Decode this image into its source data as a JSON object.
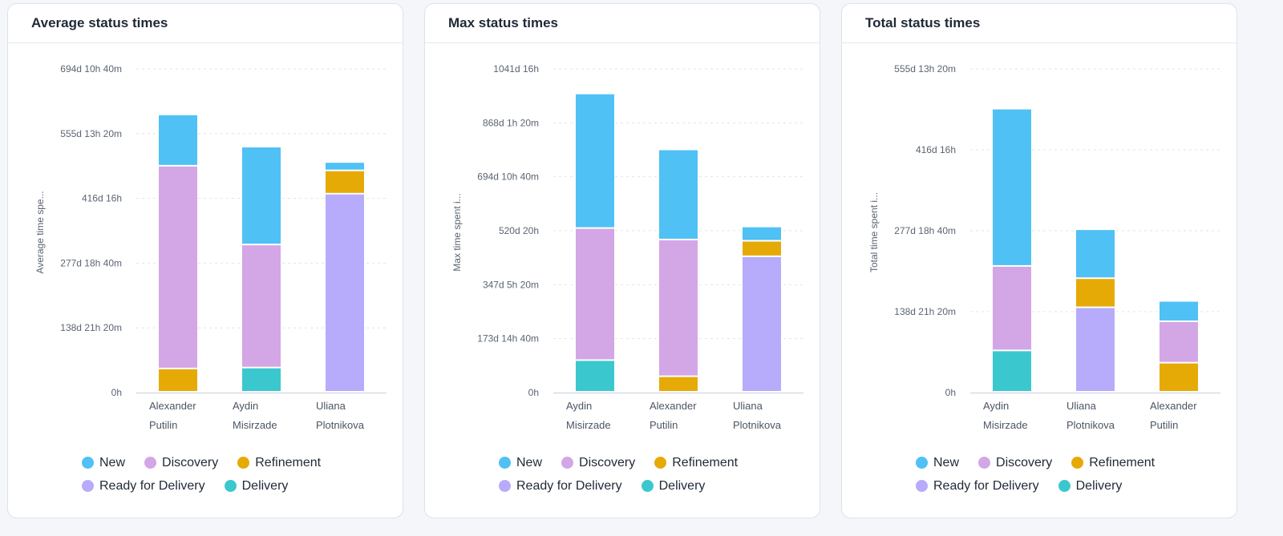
{
  "colors": {
    "New": "#4fc1f5",
    "Discovery": "#d3a6e5",
    "Refinement": "#e6aa06",
    "Ready for Delivery": "#b7abfb",
    "Delivery": "#3bc7ce"
  },
  "legend": {
    "row1": [
      "New",
      "Discovery",
      "Refinement"
    ],
    "row2": [
      "Ready for Delivery",
      "Delivery"
    ]
  },
  "chart_data": [
    {
      "type": "bar",
      "stacked": true,
      "title": "Average status times",
      "ylabel": "Average time spe...",
      "ylim": [
        0,
        694.44
      ],
      "yticks": [
        {
          "value": 0,
          "label": "0h"
        },
        {
          "value": 138.89,
          "label": "138d 21h 20m"
        },
        {
          "value": 277.78,
          "label": "277d 18h 40m"
        },
        {
          "value": 416.67,
          "label": "416d 16h"
        },
        {
          "value": 555.56,
          "label": "555d 13h 20m"
        },
        {
          "value": 694.44,
          "label": "694d 10h 40m"
        }
      ],
      "categories": [
        [
          "Alexander",
          "Putilin"
        ],
        [
          "Aydin",
          "Misirzade"
        ],
        [
          "Uliana",
          "Plotnikova"
        ]
      ],
      "series": [
        {
          "name": "Delivery",
          "values": [
            0,
            52,
            0
          ]
        },
        {
          "name": "Ready for Delivery",
          "values": [
            0,
            0,
            425
          ]
        },
        {
          "name": "Refinement",
          "values": [
            50,
            0,
            50
          ]
        },
        {
          "name": "Discovery",
          "values": [
            435,
            264,
            0
          ]
        },
        {
          "name": "New",
          "values": [
            110,
            210,
            18
          ]
        }
      ],
      "grid": true,
      "legend_position": "bottom"
    },
    {
      "type": "bar",
      "stacked": true,
      "title": "Max status times",
      "ylabel": "Max time spent i...",
      "ylim": [
        0,
        1041.67
      ],
      "yticks": [
        {
          "value": 0,
          "label": "0h"
        },
        {
          "value": 173.61,
          "label": "173d 14h 40m"
        },
        {
          "value": 347.22,
          "label": "347d 5h 20m"
        },
        {
          "value": 520.83,
          "label": "520d 20h"
        },
        {
          "value": 694.44,
          "label": "694d 10h 40m"
        },
        {
          "value": 868.06,
          "label": "868d 1h 20m"
        },
        {
          "value": 1041.67,
          "label": "1041d 16h"
        }
      ],
      "categories": [
        [
          "Aydin",
          "Misirzade"
        ],
        [
          "Alexander",
          "Putilin"
        ],
        [
          "Uliana",
          "Plotnikova"
        ]
      ],
      "series": [
        {
          "name": "Delivery",
          "values": [
            102,
            0,
            0
          ]
        },
        {
          "name": "Ready for Delivery",
          "values": [
            0,
            0,
            436
          ]
        },
        {
          "name": "Refinement",
          "values": [
            0,
            50,
            50
          ]
        },
        {
          "name": "Discovery",
          "values": [
            425,
            440,
            0
          ]
        },
        {
          "name": "New",
          "values": [
            433,
            290,
            46
          ]
        }
      ],
      "grid": true,
      "legend_position": "bottom"
    },
    {
      "type": "bar",
      "stacked": true,
      "title": "Total status times",
      "ylabel": "Total time spent i...",
      "ylim": [
        0,
        555.56
      ],
      "yticks": [
        {
          "value": 0,
          "label": "0h"
        },
        {
          "value": 138.89,
          "label": "138d 21h 20m"
        },
        {
          "value": 277.78,
          "label": "277d 18h 40m"
        },
        {
          "value": 416.67,
          "label": "416d 16h"
        },
        {
          "value": 555.56,
          "label": "555d 13h 20m"
        }
      ],
      "categories": [
        [
          "Aydin",
          "Misirzade"
        ],
        [
          "Uliana",
          "Plotnikova"
        ],
        [
          "Alexander",
          "Putilin"
        ]
      ],
      "series": [
        {
          "name": "Delivery",
          "values": [
            71,
            0,
            0
          ]
        },
        {
          "name": "Ready for Delivery",
          "values": [
            0,
            145,
            0
          ]
        },
        {
          "name": "Refinement",
          "values": [
            0,
            50,
            50
          ]
        },
        {
          "name": "Discovery",
          "values": [
            145,
            0,
            71
          ]
        },
        {
          "name": "New",
          "values": [
            270,
            84,
            35
          ]
        }
      ],
      "grid": true,
      "legend_position": "bottom"
    }
  ]
}
